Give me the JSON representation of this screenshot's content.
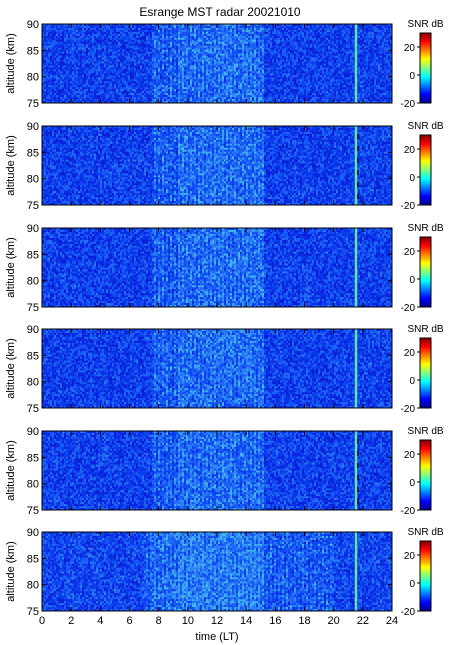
{
  "chart_data": {
    "type": "heatmap",
    "title": "Esrange MST radar 20021010",
    "xlabel": "time (LT)",
    "xlim": [
      0,
      24
    ],
    "x_ticks": [
      "0",
      "2",
      "4",
      "6",
      "8",
      "10",
      "12",
      "14",
      "16",
      "18",
      "20",
      "22",
      "24"
    ],
    "colorbar": {
      "label": "SNR dB",
      "range": [
        -20,
        30
      ],
      "ticks": [
        "20",
        "0",
        "-20"
      ],
      "colormap": [
        "#00008f",
        "#0000ff",
        "#0080ff",
        "#00ffff",
        "#80ff80",
        "#ffff00",
        "#ff8000",
        "#ff0000",
        "#800000"
      ]
    },
    "panels": [
      {
        "ylabel": "altitude (km)",
        "ylim": [
          75,
          90
        ],
        "y_ticks": [
          "90",
          "85",
          "80",
          "75"
        ]
      },
      {
        "ylabel": "altitude (km)",
        "ylim": [
          75,
          90
        ],
        "y_ticks": [
          "90",
          "85",
          "80",
          "75"
        ]
      },
      {
        "ylabel": "altitude (km)",
        "ylim": [
          75,
          90
        ],
        "y_ticks": [
          "90",
          "85",
          "80",
          "75"
        ]
      },
      {
        "ylabel": "altitude (km)",
        "ylim": [
          75,
          90
        ],
        "y_ticks": [
          "90",
          "85",
          "80",
          "75"
        ]
      },
      {
        "ylabel": "altitude (km)",
        "ylim": [
          75,
          90
        ],
        "y_ticks": [
          "90",
          "85",
          "80",
          "75"
        ]
      },
      {
        "ylabel": "altitude (km)",
        "ylim": [
          75,
          90
        ],
        "y_ticks": [
          "90",
          "85",
          "80",
          "75"
        ]
      }
    ]
  }
}
